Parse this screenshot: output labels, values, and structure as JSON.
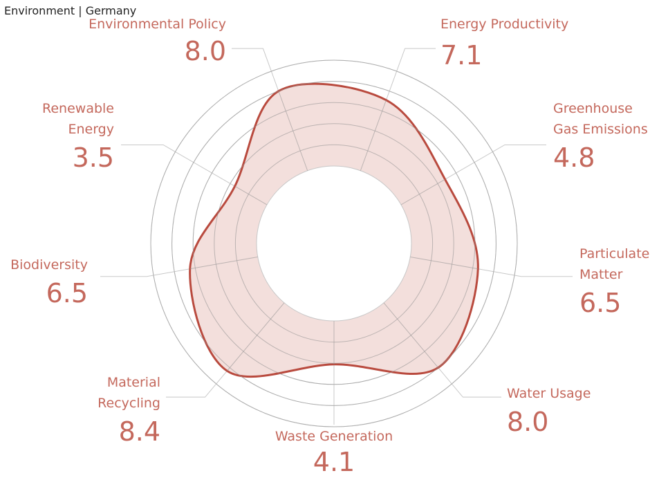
{
  "chart_data": {
    "type": "radar",
    "title": "Environment | Germany",
    "categories": [
      "Energy Productivity",
      "Greenhouse Gas Emissions",
      "Particulate Matter",
      "Water Usage",
      "Waste Generation",
      "Material Recycling",
      "Biodiversity",
      "Renewable Energy",
      "Environmental Policy"
    ],
    "values": [
      7.1,
      4.8,
      6.5,
      8.0,
      4.1,
      8.4,
      6.5,
      3.5,
      8.0
    ],
    "value_labels": [
      "7.1",
      "4.8",
      "6.5",
      "8.0",
      "4.1",
      "8.4",
      "6.5",
      "3.5",
      "8.0"
    ],
    "color": "#b94a3e",
    "fill": "#f1d9d6",
    "rlim": [
      0,
      10
    ],
    "rticks": [
      0,
      2,
      4,
      6,
      8,
      10
    ]
  }
}
